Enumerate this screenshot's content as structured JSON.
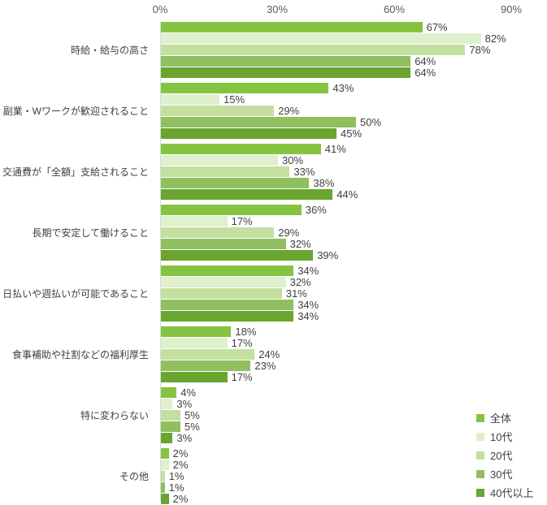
{
  "chart_data": {
    "type": "bar",
    "orientation": "horizontal",
    "title": "",
    "value_suffix": "%",
    "grid": false,
    "legend_position": "bottom-right",
    "axis": {
      "tick_labels": [
        "0%",
        "30%",
        "60%",
        "90%"
      ],
      "tick_values": [
        0,
        30,
        60,
        90
      ],
      "xlim": [
        0,
        99
      ]
    },
    "categories": [
      "時給・給与の高さ",
      "副業・Wワークが歓迎されること",
      "交通費が「全額」支給されること",
      "長期で安定して働けること",
      "日払いや週払いが可能であること",
      "食事補助や社割などの福利厚生",
      "特に変わらない",
      "その他"
    ],
    "series": [
      {
        "name": "全体",
        "color": "#84C441",
        "values": [
          67,
          43,
          41,
          36,
          34,
          18,
          4,
          2
        ]
      },
      {
        "name": "10代",
        "color": "#DFF0CD",
        "values": [
          82,
          15,
          30,
          17,
          32,
          17,
          3,
          2
        ]
      },
      {
        "name": "20代",
        "color": "#C3E0A0",
        "values": [
          78,
          29,
          33,
          29,
          31,
          24,
          5,
          1
        ]
      },
      {
        "name": "30代",
        "color": "#90BF60",
        "values": [
          64,
          50,
          38,
          32,
          34,
          23,
          5,
          1
        ]
      },
      {
        "name": "40代以上",
        "color": "#69A52F",
        "values": [
          64,
          45,
          44,
          39,
          34,
          17,
          3,
          2
        ]
      }
    ],
    "colors": {
      "axis_line": "#d9d9d9",
      "label_text": "#404040",
      "tick_text": "#595959"
    }
  }
}
